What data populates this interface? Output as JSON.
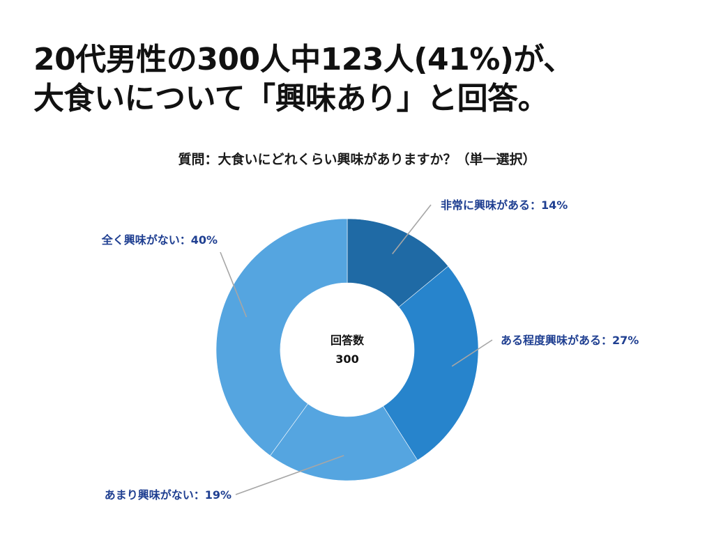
{
  "headline": {
    "line1": "20代男性の300人中123人(41%)が、",
    "line2": "大食いについて「興味あり」と回答。"
  },
  "question": "質問：大食いにどれくらい興味がありますか？（単一選択）",
  "chart_data": {
    "type": "pie",
    "style": "donut",
    "center_label": "回答数",
    "center_value": "300",
    "slices": [
      {
        "label": "非常に興味がある：14%",
        "value": 14,
        "color": "#1f6aa5"
      },
      {
        "label": "ある程度興味がある：27%",
        "value": 27,
        "color": "#2784cc"
      },
      {
        "label": "あまり興味がない：19%",
        "value": 19,
        "color": "#55a5e0"
      },
      {
        "label": "全く興味がない：40%",
        "value": 40,
        "color": "#55a5e0"
      }
    ],
    "leader_color": "#a6a6a6"
  }
}
